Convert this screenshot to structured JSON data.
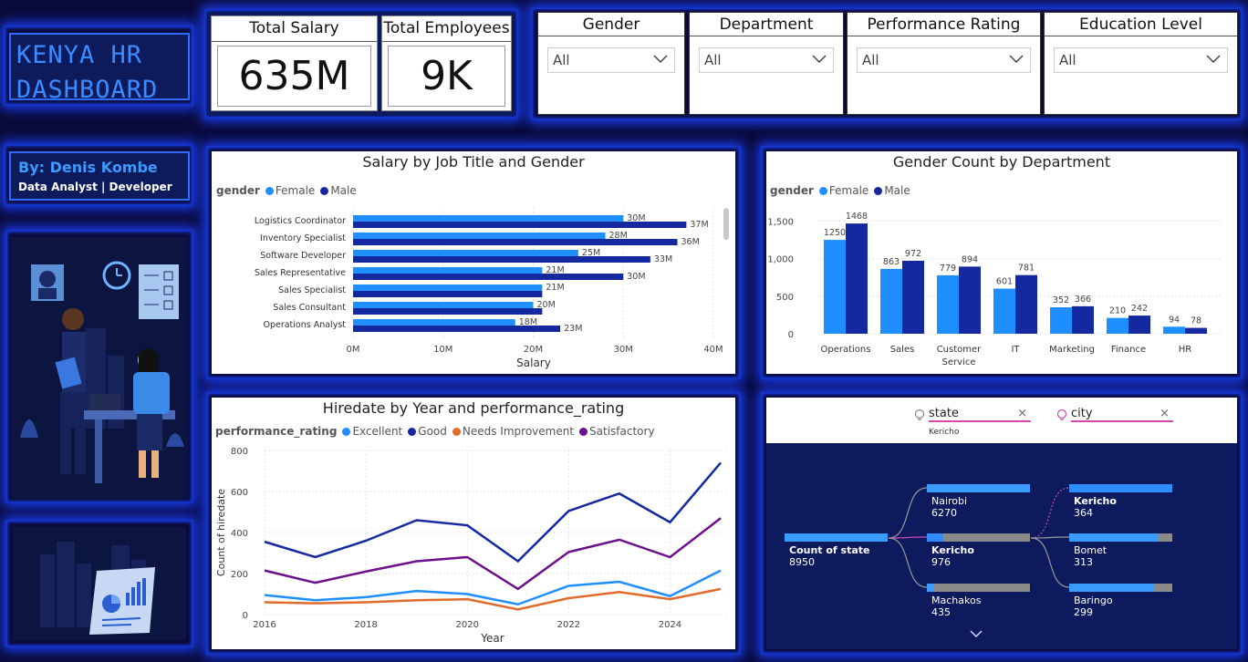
{
  "title": {
    "line1": "KENYA HR",
    "line2": "DASHBOARD"
  },
  "author": {
    "name": "By: Denis Kombe",
    "role": "Data Analyst | Developer"
  },
  "kpis": [
    {
      "label": "Total Salary",
      "value": "635M"
    },
    {
      "label": "Total Employees",
      "value": "9K"
    }
  ],
  "slicers": [
    {
      "label": "Gender",
      "value": "All"
    },
    {
      "label": "Department",
      "value": "All"
    },
    {
      "label": "Performance Rating",
      "value": "All"
    },
    {
      "label": "Education Level",
      "value": "All"
    }
  ],
  "colors": {
    "female": "#1f8fff",
    "male": "#1428a0",
    "excellent": "#1f8fff",
    "good": "#1428a0",
    "needs": "#e06b2c",
    "satisfactory": "#6b0f8a"
  },
  "chart_data": [
    {
      "type": "bar",
      "orientation": "horizontal",
      "title": "Salary by Job Title and Gender",
      "legend_title": "gender",
      "categories": [
        "Logistics Coordinator",
        "Inventory Specialist",
        "Software Developer",
        "Sales Representative",
        "Sales Specialist",
        "Sales Consultant",
        "Operations Analyst"
      ],
      "series": [
        {
          "name": "Female",
          "values": [
            30,
            28,
            25,
            21,
            21,
            20,
            18
          ],
          "labels": [
            "30M",
            "28M",
            "25M",
            "21M",
            "21M",
            "20M",
            "18M"
          ]
        },
        {
          "name": "Male",
          "values": [
            37,
            36,
            33,
            30,
            21,
            21,
            23
          ],
          "labels": [
            "37M",
            "36M",
            "33M",
            "30M",
            "",
            "",
            "23M"
          ]
        }
      ],
      "xlabel": "Salary",
      "xticks": [
        "0M",
        "10M",
        "20M",
        "30M",
        "40M"
      ],
      "xlim": [
        0,
        40
      ]
    },
    {
      "type": "bar",
      "title": "Gender Count by Department",
      "legend_title": "gender",
      "categories": [
        "Operations",
        "Sales",
        "Customer Service",
        "IT",
        "Marketing",
        "Finance",
        "HR"
      ],
      "category_lines": [
        [
          "Operations"
        ],
        [
          "Sales"
        ],
        [
          "Customer",
          "Service"
        ],
        [
          "IT"
        ],
        [
          "Marketing"
        ],
        [
          "Finance"
        ],
        [
          "HR"
        ]
      ],
      "series": [
        {
          "name": "Female",
          "values": [
            1250,
            863,
            779,
            601,
            352,
            210,
            94
          ]
        },
        {
          "name": "Male",
          "values": [
            1468,
            972,
            894,
            781,
            366,
            242,
            78
          ]
        }
      ],
      "yticks": [
        "0",
        "500",
        "1,000",
        "1,500"
      ],
      "ylim": [
        0,
        1700
      ]
    },
    {
      "type": "line",
      "title": "Hiredate by Year and performance_rating",
      "legend_title": "performance_rating",
      "x": [
        2016,
        2017,
        2018,
        2019,
        2020,
        2021,
        2022,
        2023,
        2024,
        2025
      ],
      "series": [
        {
          "name": "Excellent",
          "values": [
            95,
            70,
            85,
            115,
            100,
            50,
            140,
            160,
            90,
            215
          ]
        },
        {
          "name": "Good",
          "values": [
            355,
            280,
            360,
            460,
            435,
            260,
            505,
            590,
            450,
            740
          ]
        },
        {
          "name": "Needs Improvement",
          "values": [
            60,
            55,
            60,
            70,
            75,
            25,
            80,
            110,
            75,
            125
          ]
        },
        {
          "name": "Satisfactory",
          "values": [
            215,
            155,
            210,
            260,
            280,
            125,
            305,
            365,
            280,
            470
          ]
        }
      ],
      "xlabel": "Year",
      "ylabel": "Count of hiredate",
      "xticks": [
        "2016",
        "2018",
        "2020",
        "2022",
        "2024"
      ],
      "yticks": [
        "0",
        "200",
        "400",
        "600",
        "800"
      ],
      "ylim": [
        0,
        800
      ]
    }
  ],
  "tree": {
    "field1": "state",
    "field1_filter": "Kericho",
    "field2": "city",
    "root": {
      "label": "Count of state",
      "value": "8950"
    },
    "level1": [
      {
        "label": "Nairobi",
        "value": "6270",
        "frac": 1.0
      },
      {
        "label": "Kericho",
        "value": "976",
        "frac": 0.16
      },
      {
        "label": "Machakos",
        "value": "435",
        "frac": 0.07
      }
    ],
    "level2": [
      {
        "label": "Kericho",
        "value": "364",
        "frac": 1.0
      },
      {
        "label": "Bomet",
        "value": "313",
        "frac": 0.86
      },
      {
        "label": "Baringo",
        "value": "299",
        "frac": 0.82
      }
    ]
  }
}
